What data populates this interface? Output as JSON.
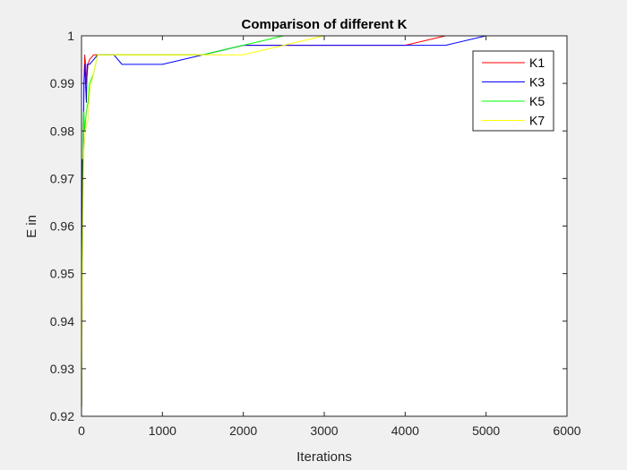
{
  "chart_data": {
    "type": "line",
    "title": "Comparison of different K",
    "xlabel": "Iterations",
    "ylabel": "E in",
    "xlim": [
      0,
      6000
    ],
    "ylim": [
      0.92,
      1.0
    ],
    "xticks": [
      0,
      1000,
      2000,
      3000,
      4000,
      5000,
      6000
    ],
    "xtick_labels": [
      "0",
      "1000",
      "2000",
      "3000",
      "4000",
      "5000",
      "6000"
    ],
    "yticks": [
      0.92,
      0.93,
      0.94,
      0.95,
      0.96,
      0.97,
      0.98,
      0.99,
      1.0
    ],
    "ytick_labels": [
      "0.92",
      "0.93",
      "0.94",
      "0.95",
      "0.96",
      "0.97",
      "0.98",
      "0.99",
      "1"
    ],
    "grid": false,
    "legend_position": "top-right",
    "series": [
      {
        "name": "K1",
        "color": "#ff0000",
        "x": [
          1,
          10,
          20,
          30,
          40,
          50,
          60,
          70,
          80,
          100,
          150,
          200,
          300,
          500,
          1000,
          1500,
          2000,
          3000,
          4000,
          4500,
          5000,
          5500
        ],
        "y": [
          0.922,
          0.95,
          0.972,
          0.99,
          0.996,
          0.994,
          0.99,
          0.992,
          0.994,
          0.995,
          0.996,
          0.996,
          0.996,
          0.996,
          0.996,
          0.996,
          0.998,
          0.998,
          0.998,
          1.0,
          1.0,
          1.0
        ]
      },
      {
        "name": "K3",
        "color": "#0000ff",
        "x": [
          1,
          10,
          20,
          30,
          40,
          50,
          60,
          70,
          80,
          100,
          150,
          200,
          300,
          400,
          500,
          1000,
          1500,
          2000,
          3000,
          4000,
          4500,
          5000,
          5500
        ],
        "y": [
          0.922,
          0.974,
          0.97,
          0.99,
          0.994,
          0.99,
          0.986,
          0.994,
          0.994,
          0.994,
          0.995,
          0.996,
          0.996,
          0.996,
          0.994,
          0.994,
          0.996,
          0.998,
          0.998,
          0.998,
          0.998,
          1.0,
          1.0
        ]
      },
      {
        "name": "K5",
        "color": "#00ff00",
        "x": [
          1,
          10,
          20,
          30,
          40,
          50,
          60,
          80,
          100,
          150,
          200,
          300,
          500,
          1000,
          1500,
          2000,
          2500,
          3000,
          4000,
          5000,
          5500
        ],
        "y": [
          0.922,
          0.95,
          0.97,
          0.984,
          0.98,
          0.982,
          0.984,
          0.986,
          0.99,
          0.992,
          0.996,
          0.996,
          0.996,
          0.996,
          0.996,
          0.998,
          1.0,
          1.0,
          1.0,
          1.0,
          1.0
        ]
      },
      {
        "name": "K7",
        "color": "#ffff00",
        "x": [
          1,
          10,
          20,
          30,
          40,
          50,
          60,
          80,
          100,
          150,
          200,
          300,
          500,
          1000,
          1500,
          2000,
          3000,
          4000,
          5000,
          5500
        ],
        "y": [
          0.922,
          0.945,
          0.965,
          0.976,
          0.978,
          0.98,
          0.981,
          0.982,
          0.988,
          0.992,
          0.996,
          0.996,
          0.996,
          0.996,
          0.996,
          0.996,
          1.0,
          1.0,
          1.0,
          1.0
        ]
      }
    ]
  }
}
